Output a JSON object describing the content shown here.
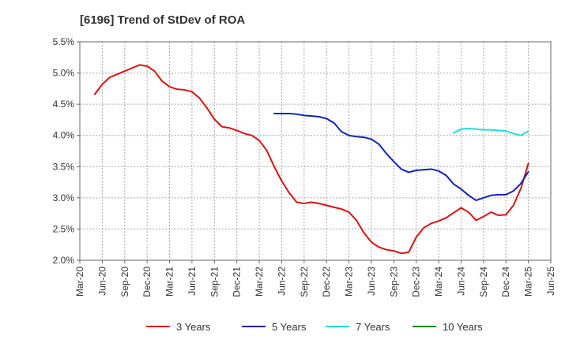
{
  "chart_data": {
    "type": "line",
    "title": "[6196]  Trend of StDev of ROA",
    "xlabel": "",
    "ylabel": "",
    "ylim": [
      2.0,
      5.5
    ],
    "yticks": [
      "2.0%",
      "2.5%",
      "3.0%",
      "3.5%",
      "4.0%",
      "4.5%",
      "5.0%",
      "5.5%"
    ],
    "xticks": [
      "Mar-20",
      "Jun-20",
      "Sep-20",
      "Dec-20",
      "Mar-21",
      "Jun-21",
      "Sep-21",
      "Dec-21",
      "Mar-22",
      "Jun-22",
      "Sep-22",
      "Dec-22",
      "Mar-23",
      "Jun-23",
      "Sep-23",
      "Dec-23",
      "Mar-24",
      "Jun-24",
      "Sep-24",
      "Dec-24",
      "Mar-25",
      "Jun-25"
    ],
    "grid": true,
    "legend_position": "bottom",
    "series": [
      {
        "name": "3 Years",
        "color": "#dd1111",
        "points": [
          [
            "May-20",
            4.66
          ],
          [
            "Jun-20",
            4.82
          ],
          [
            "Jul-20",
            4.93
          ],
          [
            "Aug-20",
            4.98
          ],
          [
            "Sep-20",
            5.03
          ],
          [
            "Oct-20",
            5.08
          ],
          [
            "Nov-20",
            5.13
          ],
          [
            "Dec-20",
            5.11
          ],
          [
            "Jan-21",
            5.03
          ],
          [
            "Feb-21",
            4.87
          ],
          [
            "Mar-21",
            4.78
          ],
          [
            "Apr-21",
            4.74
          ],
          [
            "May-21",
            4.73
          ],
          [
            "Jun-21",
            4.7
          ],
          [
            "Jul-21",
            4.6
          ],
          [
            "Aug-21",
            4.44
          ],
          [
            "Sep-21",
            4.26
          ],
          [
            "Oct-21",
            4.14
          ],
          [
            "Nov-21",
            4.12
          ],
          [
            "Dec-21",
            4.08
          ],
          [
            "Jan-22",
            4.03
          ],
          [
            "Feb-22",
            4.0
          ],
          [
            "Mar-22",
            3.92
          ],
          [
            "Apr-22",
            3.76
          ],
          [
            "May-22",
            3.5
          ],
          [
            "Jun-22",
            3.27
          ],
          [
            "Jul-22",
            3.08
          ],
          [
            "Aug-22",
            2.93
          ],
          [
            "Sep-22",
            2.91
          ],
          [
            "Oct-22",
            2.93
          ],
          [
            "Nov-22",
            2.91
          ],
          [
            "Dec-22",
            2.88
          ],
          [
            "Jan-23",
            2.85
          ],
          [
            "Feb-23",
            2.82
          ],
          [
            "Mar-23",
            2.77
          ],
          [
            "Apr-23",
            2.64
          ],
          [
            "May-23",
            2.44
          ],
          [
            "Jun-23",
            2.29
          ],
          [
            "Jul-23",
            2.21
          ],
          [
            "Aug-23",
            2.17
          ],
          [
            "Sep-23",
            2.15
          ],
          [
            "Oct-23",
            2.11
          ],
          [
            "Nov-23",
            2.13
          ],
          [
            "Dec-23",
            2.37
          ],
          [
            "Jan-24",
            2.52
          ],
          [
            "Feb-24",
            2.59
          ],
          [
            "Mar-24",
            2.63
          ],
          [
            "Apr-24",
            2.68
          ],
          [
            "May-24",
            2.76
          ],
          [
            "Jun-24",
            2.84
          ],
          [
            "Jul-24",
            2.77
          ],
          [
            "Aug-24",
            2.64
          ],
          [
            "Sep-24",
            2.7
          ],
          [
            "Oct-24",
            2.77
          ],
          [
            "Nov-24",
            2.72
          ],
          [
            "Dec-24",
            2.73
          ],
          [
            "Jan-25",
            2.88
          ],
          [
            "Feb-25",
            3.15
          ],
          [
            "Mar-25",
            3.55
          ]
        ]
      },
      {
        "name": "5 Years",
        "color": "#1122bb",
        "points": [
          [
            "May-22",
            4.35
          ],
          [
            "Jun-22",
            4.35
          ],
          [
            "Jul-22",
            4.35
          ],
          [
            "Aug-22",
            4.34
          ],
          [
            "Sep-22",
            4.32
          ],
          [
            "Oct-22",
            4.31
          ],
          [
            "Nov-22",
            4.3
          ],
          [
            "Dec-22",
            4.27
          ],
          [
            "Jan-23",
            4.2
          ],
          [
            "Feb-23",
            4.06
          ],
          [
            "Mar-23",
            4.0
          ],
          [
            "Apr-23",
            3.98
          ],
          [
            "May-23",
            3.97
          ],
          [
            "Jun-23",
            3.94
          ],
          [
            "Jul-23",
            3.86
          ],
          [
            "Aug-23",
            3.71
          ],
          [
            "Sep-23",
            3.58
          ],
          [
            "Oct-23",
            3.46
          ],
          [
            "Nov-23",
            3.41
          ],
          [
            "Dec-23",
            3.44
          ],
          [
            "Jan-24",
            3.45
          ],
          [
            "Feb-24",
            3.46
          ],
          [
            "Mar-24",
            3.43
          ],
          [
            "Apr-24",
            3.36
          ],
          [
            "May-24",
            3.22
          ],
          [
            "Jun-24",
            3.14
          ],
          [
            "Jul-24",
            3.04
          ],
          [
            "Aug-24",
            2.96
          ],
          [
            "Sep-24",
            3.0
          ],
          [
            "Oct-24",
            3.04
          ],
          [
            "Nov-24",
            3.05
          ],
          [
            "Dec-24",
            3.05
          ],
          [
            "Jan-25",
            3.11
          ],
          [
            "Feb-25",
            3.23
          ],
          [
            "Mar-25",
            3.42
          ]
        ]
      },
      {
        "name": "7 Years",
        "color": "#22dddd",
        "points": [
          [
            "May-24",
            4.04
          ],
          [
            "Jun-24",
            4.1
          ],
          [
            "Jul-24",
            4.11
          ],
          [
            "Aug-24",
            4.1
          ],
          [
            "Sep-24",
            4.09
          ],
          [
            "Oct-24",
            4.09
          ],
          [
            "Nov-24",
            4.08
          ],
          [
            "Dec-24",
            4.07
          ],
          [
            "Jan-25",
            4.03
          ],
          [
            "Feb-25",
            4.0
          ],
          [
            "Mar-25",
            4.07
          ]
        ]
      },
      {
        "name": "10 Years",
        "color": "#118811",
        "points": []
      }
    ]
  }
}
